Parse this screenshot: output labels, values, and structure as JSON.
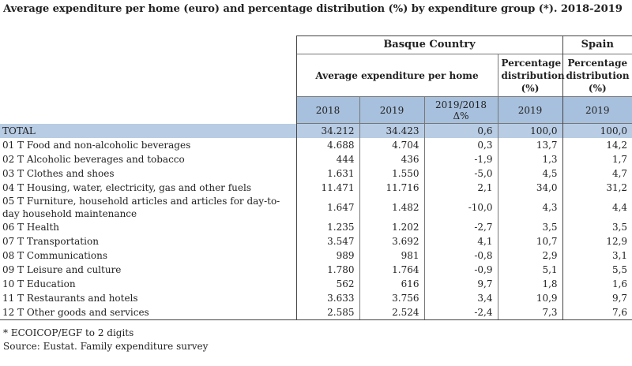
{
  "title": "Average expenditure per home (euro) and percentage distribution (%) by expenditure group (*). 2018-2019",
  "header": {
    "region_1": "Basque Country",
    "region_2": "Spain",
    "group_1": "Average expenditure per home",
    "group_2": "Percentage distribution (%)",
    "group_3": "Percentage distribution (%)",
    "columns": [
      "2018",
      "2019",
      "2019/2018\nΔ%",
      "2019",
      "2019"
    ]
  },
  "table": {
    "rows": [
      [
        "TOTAL",
        "34.212",
        "34.423",
        "0,6",
        "100,0",
        "100,0"
      ],
      [
        "01 T Food and non-alcoholic beverages",
        "4.688",
        "4.704",
        "0,3",
        "13,7",
        "14,2"
      ],
      [
        "02 T Alcoholic beverages and tobacco",
        "444",
        "436",
        "-1,9",
        "1,3",
        "1,7"
      ],
      [
        "03 T Clothes and shoes",
        "1.631",
        "1.550",
        "-5,0",
        "4,5",
        "4,7"
      ],
      [
        "04 T Housing, water, electricity, gas and other fuels",
        "11.471",
        "11.716",
        "2,1",
        "34,0",
        "31,2"
      ],
      [
        "05 T Furniture, household articles and articles for day-to-day household maintenance",
        "1.647",
        "1.482",
        "-10,0",
        "4,3",
        "4,4"
      ],
      [
        "06 T Health",
        "1.235",
        "1.202",
        "-2,7",
        "3,5",
        "3,5"
      ],
      [
        "07 T Transportation",
        "3.547",
        "3.692",
        "4,1",
        "10,7",
        "12,9"
      ],
      [
        "08 T Communications",
        "989",
        "981",
        "-0,8",
        "2,9",
        "3,1"
      ],
      [
        "09 T Leisure and culture",
        "1.780",
        "1.764",
        "-0,9",
        "5,1",
        "5,5"
      ],
      [
        "10 T Education",
        "562",
        "616",
        "9,7",
        "1,8",
        "1,6"
      ],
      [
        "11 T Restaurants and hotels",
        "3.633",
        "3.756",
        "3,4",
        "10,9",
        "9,7"
      ],
      [
        "12 T Other goods and services",
        "2.585",
        "2.524",
        "-2,4",
        "7,3",
        "7,6"
      ]
    ]
  },
  "notes": [
    "* ECOICOP/EGF to 2 digits",
    "Source: Eustat. Family expenditure survey"
  ]
}
